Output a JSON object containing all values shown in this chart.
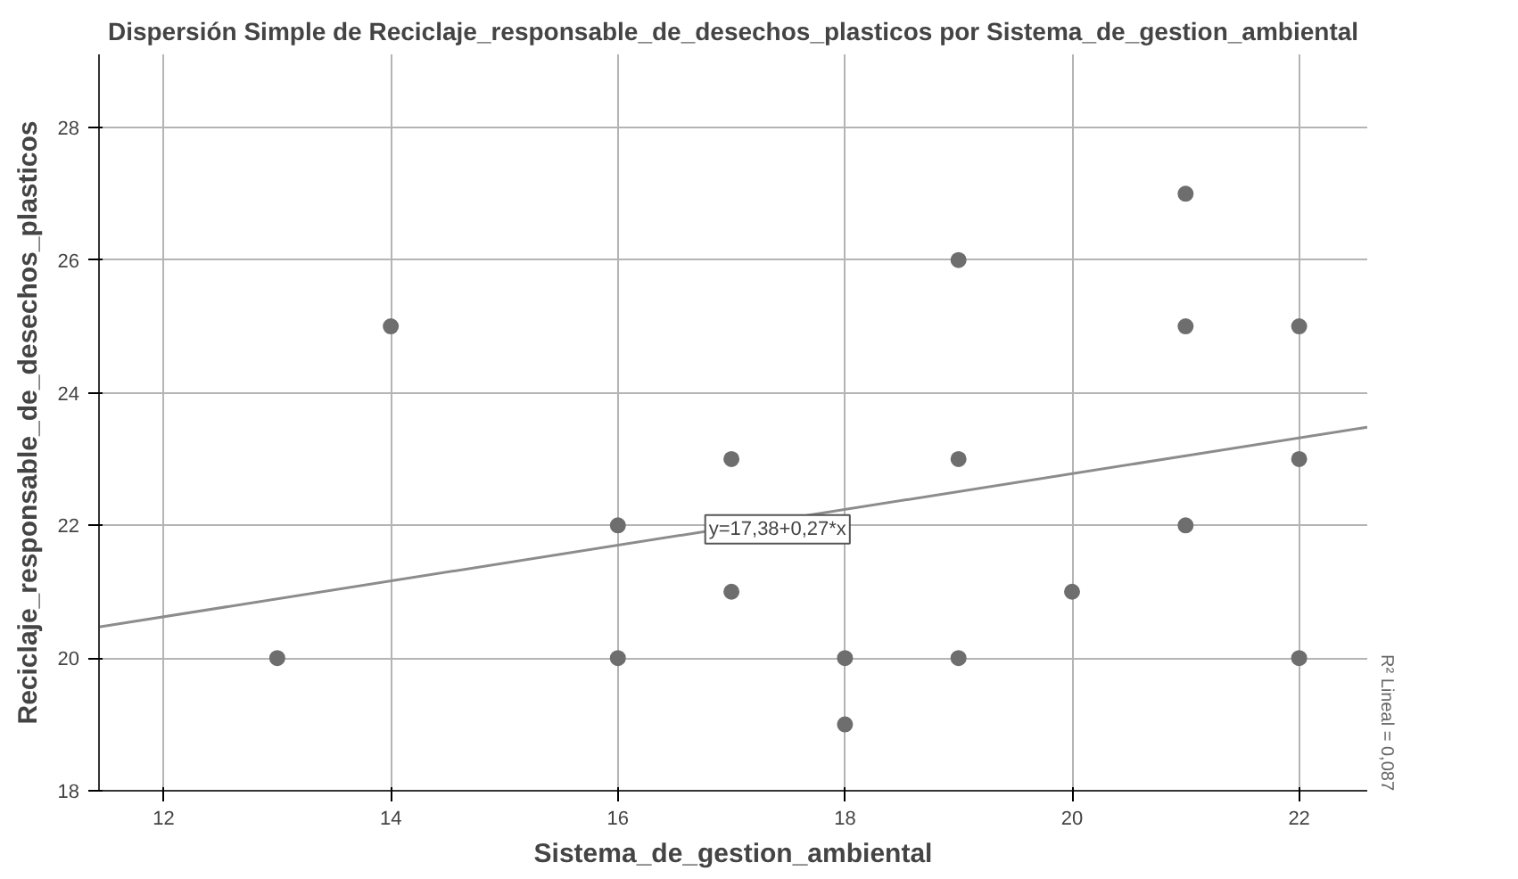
{
  "chart_data": {
    "type": "scatter",
    "title": "Dispersión Simple de Reciclaje_responsable_de_desechos_plasticos por Sistema_de_gestion_ambiental",
    "xlabel": "Sistema_de_gestion_ambiental",
    "ylabel": "Reciclaje_responsable_de_desechos_plasticos",
    "series": [
      {
        "color": "#6e6e6e",
        "marker": "circle",
        "x": [
          13,
          14,
          16,
          16,
          17,
          17,
          18,
          18,
          19,
          19,
          19,
          20,
          21,
          21,
          21,
          22,
          22,
          22
        ],
        "values": [
          20,
          25,
          22,
          20,
          23,
          21,
          20,
          19,
          26,
          23,
          20,
          21,
          27,
          25,
          22,
          25,
          23,
          20
        ]
      },
      {
        "type": "line",
        "color": "#8c8c8c",
        "x": [
          11.43,
          22.6
        ],
        "values": [
          20.47,
          23.48
        ]
      }
    ],
    "annotations": [
      "y=17,38+0,27*x",
      "R² Lineal = 0,087"
    ],
    "xlim": [
      11.43,
      22.6
    ],
    "ylim": [
      18,
      29.1
    ],
    "xticks": [
      12,
      14,
      16,
      18,
      20,
      22
    ],
    "yticks": [
      18,
      20,
      22,
      24,
      26,
      28
    ],
    "grid": true
  }
}
